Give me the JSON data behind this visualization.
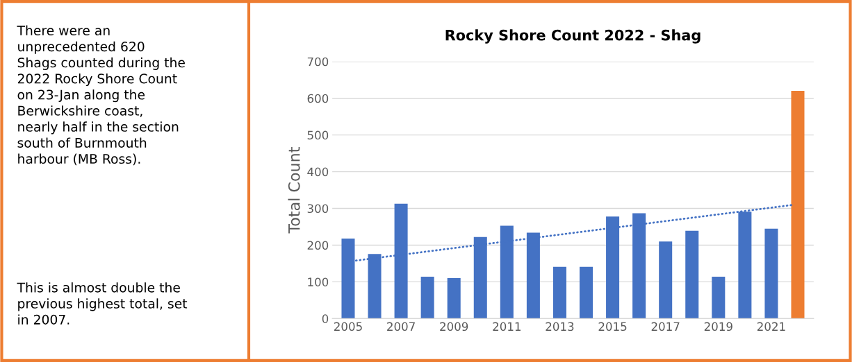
{
  "chart_data": {
    "type": "bar",
    "title": "Rocky Shore Count 2022 - Shag",
    "ylabel": "Total Count",
    "x": [
      2005,
      2006,
      2007,
      2008,
      2009,
      2010,
      2011,
      2012,
      2013,
      2014,
      2015,
      2016,
      2017,
      2018,
      2019,
      2020,
      2021,
      2022
    ],
    "series": [
      {
        "values": [
          218,
          176,
          313,
          114,
          110,
          222,
          253,
          234,
          141,
          141,
          278,
          287,
          210,
          239,
          114,
          291,
          245,
          620
        ],
        "colors": [
          "#4472c4",
          "#4472c4",
          "#4472c4",
          "#4472c4",
          "#4472c4",
          "#4472c4",
          "#4472c4",
          "#4472c4",
          "#4472c4",
          "#4472c4",
          "#4472c4",
          "#4472c4",
          "#4472c4",
          "#4472c4",
          "#4472c4",
          "#4472c4",
          "#4472c4",
          "#ed7d31"
        ]
      },
      {
        "type": "line",
        "x": [
          2005.3,
          2021.75
        ],
        "values": [
          158,
          309
        ],
        "color": "#4472c4",
        "line_style": "dotted"
      }
    ],
    "xlim": [
      2004.4,
      2022.6
    ],
    "xticks": [
      2005,
      2007,
      2009,
      2011,
      2013,
      2015,
      2017,
      2019,
      2021
    ],
    "ylim": [
      0,
      700
    ],
    "yticks": [
      0,
      100,
      200,
      300,
      400,
      500,
      600,
      700
    ],
    "grid": "y",
    "legend": false,
    "annotations": [
      "There were an\nunprecedented 620\nShags counted during the\n2022 Rocky Shore Count\non 23-Jan along the\nBerwickshire coast,\nnearly half in the section\nsouth of Burnmouth\nharbour (MB Ross).",
      "This is almost double the\nprevious highest total, set\nin 2007."
    ]
  }
}
